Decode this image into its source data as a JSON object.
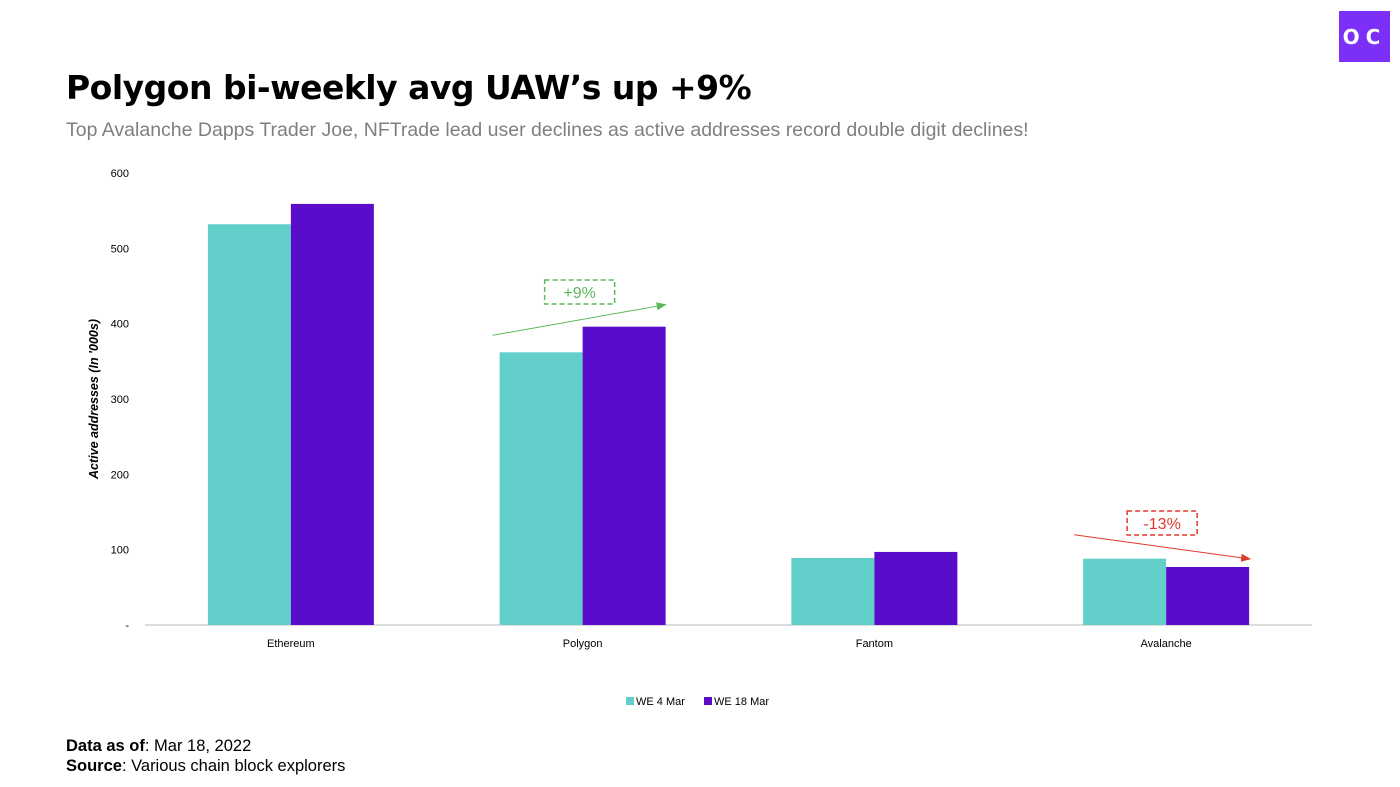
{
  "logo": {
    "text": "OC",
    "color": "#7b2ff7"
  },
  "header": {
    "title": "Polygon bi-weekly avg UAW’s up +9%",
    "subtitle": "Top Avalanche Dapps Trader Joe, NFTrade lead user declines as active addresses record double digit declines!"
  },
  "footer": {
    "data_as_of_label": "Data as of",
    "data_as_of_value": ": Mar 18, 2022",
    "source_label": "Source",
    "source_value": ": Various chain block explorers"
  },
  "chart_data": {
    "type": "bar",
    "title": "",
    "xlabel": "",
    "ylabel": "Active addresses (In '000s)",
    "ylim": [
      0,
      600
    ],
    "yticks": [
      0,
      100,
      200,
      300,
      400,
      500,
      600
    ],
    "ytick_labels": [
      "-",
      "100",
      "200",
      "300",
      "400",
      "500",
      "600"
    ],
    "grid": false,
    "legend_position": "bottom",
    "categories": [
      "Ethereum",
      "Polygon",
      "Fantom",
      "Avalanche"
    ],
    "series": [
      {
        "name": "WE 4 Mar",
        "color": "#62cfca",
        "values": [
          532,
          362,
          89,
          88
        ]
      },
      {
        "name": "WE 18 Mar",
        "color": "#5a0ccb",
        "values": [
          559,
          396,
          97,
          77
        ]
      }
    ],
    "annotations": [
      {
        "text": "+9%",
        "category": "Polygon",
        "direction": "up",
        "color": "#5cb85c"
      },
      {
        "text": "-13%",
        "category": "Avalanche",
        "direction": "down",
        "color": "#e0392b"
      }
    ]
  }
}
